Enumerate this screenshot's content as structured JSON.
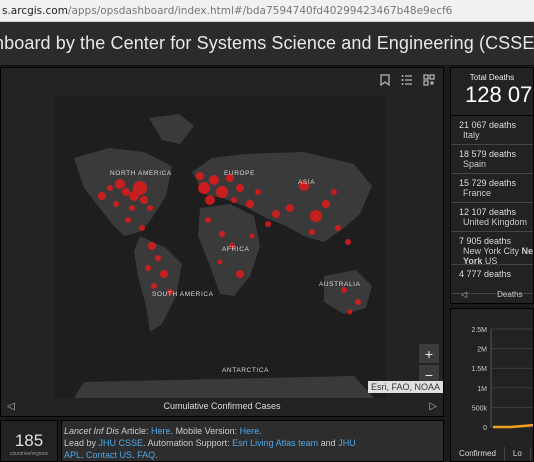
{
  "browser": {
    "url_prefix": "s.arcgis.com",
    "url_rest": "/apps/opsdashboard/index.html#/bda7594740fd40299423467b48e9ecf6"
  },
  "header": {
    "title": "hboard by the Center for Systems Science and Engineering (CSSE) at Johns H"
  },
  "map": {
    "labels": {
      "north_america": "NORTH AMERICA",
      "europe": "EUROPE",
      "asia": "ASIA",
      "africa": "AFRICA",
      "south_america": "SOUTH AMERICA",
      "australia": "AUSTRALIA",
      "antarctica": "ANTARCTICA"
    },
    "zoom_in": "+",
    "zoom_out": "−",
    "attribution": "Esri, FAO, NOAA",
    "caption": "Cumulative Confirmed Cases",
    "colors": {
      "bubble": "#e31a1c",
      "land": "#3b3b3b",
      "water": "#1e1e1e"
    }
  },
  "stats": {
    "count": "185",
    "count_label": "countries/regions"
  },
  "info": {
    "line1_prefix": "Lancet Inf Dis",
    "line1_mid": " Article: ",
    "here1": "Here",
    "line1_mid2": ". Mobile Version: ",
    "here2": "Here",
    "line2_prefix": "Lead by ",
    "jhu_csse": "JHU CSSE",
    "line2_mid": ". Automation Support: ",
    "esri": "Esri Living Atlas team",
    "and": " and ",
    "jhu": "JHU",
    "apl": "APL",
    "contact": "Contact US",
    "faq": "FAQ"
  },
  "deaths": {
    "title": "Total Deaths",
    "total": "128 07",
    "rows": [
      {
        "value": "21 067 deaths",
        "place": "Italy"
      },
      {
        "value": "18 579 deaths",
        "place": "Spain"
      },
      {
        "value": "15 729 deaths",
        "place": "France"
      },
      {
        "value": "12 107 deaths",
        "place": "United Kingdom"
      },
      {
        "value": "7 905 deaths",
        "place_a": "New York City ",
        "place_b": "New",
        "place_c": "York",
        "place_d": " US"
      },
      {
        "value": "4 777 deaths",
        "place": ""
      }
    ],
    "footer_label": "Deaths"
  },
  "chart_data": {
    "type": "line",
    "yticks": [
      "2.5M",
      "2M",
      "1.5M",
      "1M",
      "500k",
      "0"
    ],
    "ylim": [
      0,
      2500000
    ],
    "tabs": [
      "Confirmed",
      "Lo"
    ]
  }
}
